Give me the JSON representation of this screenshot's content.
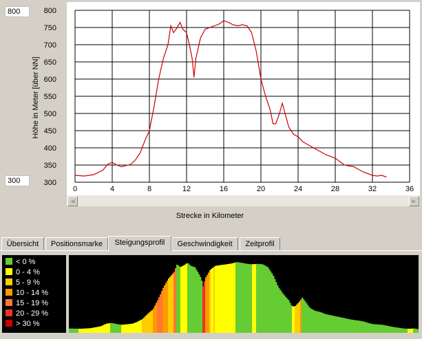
{
  "elevation_chart": {
    "ymax_field": "800",
    "ymin_field": "300",
    "chart_data": {
      "type": "line",
      "xlabel": "Strecke in Kilometer",
      "ylabel": "Höhe in Meter [über NN]",
      "xlim": [
        0,
        36
      ],
      "ylim": [
        300,
        800
      ],
      "x_ticks": [
        "0",
        "4",
        "8",
        "12",
        "16",
        "20",
        "24",
        "28",
        "32",
        "36"
      ],
      "y_ticks": [
        "800",
        "750",
        "700",
        "650",
        "600",
        "550",
        "500",
        "450",
        "400",
        "350",
        "300"
      ],
      "grid": true,
      "series": [
        {
          "color": "#cc0000",
          "x": [
            0,
            1,
            2,
            3,
            3.5,
            4,
            4.5,
            5,
            6,
            6.5,
            7,
            7.5,
            8,
            8.5,
            9,
            9.5,
            10,
            10.3,
            10.6,
            11,
            11.3,
            11.6,
            12,
            12.3,
            12.6,
            12.8,
            13,
            13.5,
            14,
            14.5,
            15,
            15.5,
            16,
            16.5,
            17,
            17.5,
            18,
            18.5,
            19,
            19.5,
            20,
            20.5,
            21,
            21.3,
            21.6,
            22,
            22.3,
            22.6,
            23,
            23.5,
            24,
            24.5,
            25,
            26,
            27,
            28,
            29,
            30,
            31,
            32,
            32.5,
            33,
            33.5
          ],
          "y": [
            320,
            318,
            322,
            335,
            352,
            358,
            350,
            345,
            352,
            365,
            385,
            420,
            450,
            520,
            600,
            660,
            700,
            755,
            735,
            750,
            765,
            745,
            735,
            700,
            660,
            605,
            660,
            720,
            745,
            750,
            755,
            760,
            770,
            765,
            758,
            755,
            758,
            755,
            735,
            680,
            600,
            550,
            510,
            470,
            470,
            500,
            530,
            500,
            460,
            440,
            432,
            418,
            410,
            395,
            380,
            370,
            350,
            345,
            330,
            320,
            318,
            320,
            315
          ]
        }
      ]
    }
  },
  "tabs": [
    {
      "label": "Übersicht",
      "active": false
    },
    {
      "label": "Positionsmarke",
      "active": false
    },
    {
      "label": "Steigungsprofil",
      "active": true
    },
    {
      "label": "Geschwindigkeit",
      "active": false
    },
    {
      "label": "Zeitprofil",
      "active": false
    }
  ],
  "gradient_legend": [
    {
      "label": "< 0 %",
      "color": "#66cc33"
    },
    {
      "label": "0 - 4 %",
      "color": "#ffff00"
    },
    {
      "label": "5 - 9 %",
      "color": "#ffcc00"
    },
    {
      "label": "10 - 14 %",
      "color": "#ff9900"
    },
    {
      "label": "15 - 19 %",
      "color": "#ff7733"
    },
    {
      "label": "20 - 29 %",
      "color": "#ee3322"
    },
    {
      "label": "> 30 %",
      "color": "#cc0000"
    }
  ]
}
